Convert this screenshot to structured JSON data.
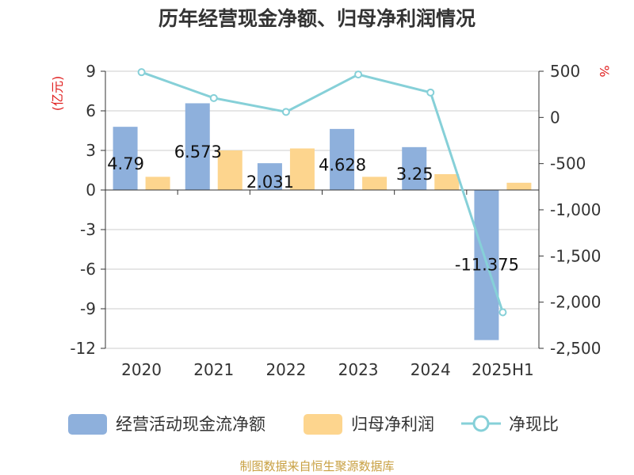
{
  "chart_data": {
    "title": "历年经营现金净额、归母净利润情况",
    "type": "bar+line",
    "categories": [
      "2020",
      "2021",
      "2022",
      "2023",
      "2024",
      "2025H1"
    ],
    "series": [
      {
        "name": "经营活动现金流净额",
        "type": "bar",
        "axis": "left",
        "color": "#8eb0dc",
        "values": [
          4.79,
          6.573,
          2.031,
          4.628,
          3.25,
          -11.375
        ],
        "labels": [
          "4.79",
          "6.573",
          "2.031",
          "4.628",
          "3.25",
          "-11.375"
        ]
      },
      {
        "name": "归母净利润",
        "type": "bar",
        "axis": "left",
        "color": "#fdd58e",
        "values": [
          1.0,
          3.0,
          3.15,
          1.0,
          1.2,
          0.55
        ]
      },
      {
        "name": "净现比",
        "type": "line",
        "axis": "right",
        "color": "#86d0d8",
        "values": [
          490,
          210,
          60,
          465,
          270,
          -2110
        ]
      }
    ],
    "y_left": {
      "unit": "(亿元)",
      "ylim": [
        -12,
        9
      ],
      "ticks": [
        9,
        6,
        3,
        0,
        -3,
        -6,
        -9,
        -12
      ],
      "tick_labels": [
        "9",
        "6",
        "3",
        "0",
        "-3",
        "-6",
        "-9",
        "-12"
      ]
    },
    "y_right": {
      "unit": "%",
      "ylim": [
        -2500,
        500
      ],
      "ticks": [
        500,
        0,
        -500,
        -1000,
        -1500,
        -2000,
        -2500
      ],
      "tick_labels": [
        "500",
        "0",
        "-500",
        "-1,000",
        "-1,500",
        "-2,000",
        "-2,500"
      ]
    },
    "grid": true,
    "legend_position": "bottom"
  },
  "source": "制图数据来自恒生聚源数据库"
}
